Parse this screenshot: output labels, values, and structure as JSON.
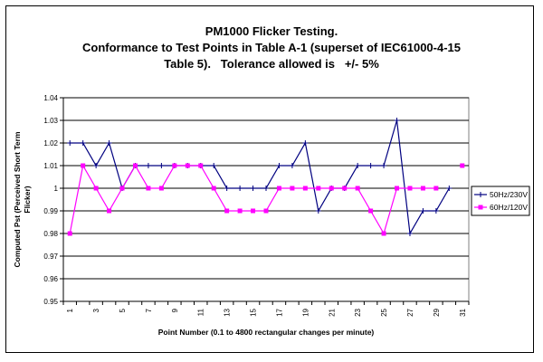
{
  "chart_data": {
    "type": "line",
    "title_lines": [
      "PM1000 Flicker Testing.",
      "Conformance to Test Points in Table A-1 (superset of IEC61000-4-15",
      "Table 5).   Tolerance allowed is   +/- 5%"
    ],
    "xlabel": "Point Number (0.1 to 4800 rectangular changes per minute)",
    "ylabel_lines": [
      "Computed Pst (Perceived Short Term",
      "Flicker)"
    ],
    "ylim": [
      0.95,
      1.04
    ],
    "yticks": [
      "0.95",
      "0.96",
      "0.97",
      "0.98",
      "0.99",
      "1",
      "1.01",
      "1.02",
      "1.03",
      "1.04"
    ],
    "categories": [
      "1",
      "2",
      "3",
      "4",
      "5",
      "6",
      "7",
      "8",
      "9",
      "10",
      "11",
      "12",
      "13",
      "14",
      "15",
      "16",
      "17",
      "18",
      "19",
      "20",
      "21",
      "22",
      "23",
      "24",
      "25",
      "26",
      "27",
      "28",
      "29",
      "30",
      "31"
    ],
    "grid": true,
    "legend_position": "right",
    "series": [
      {
        "name": "50Hz/230V",
        "color": "#000080",
        "marker": "plus",
        "values": [
          1.02,
          1.02,
          1.01,
          1.02,
          1.0,
          1.01,
          1.01,
          1.01,
          1.01,
          1.01,
          1.01,
          1.01,
          1.0,
          1.0,
          1.0,
          1.0,
          1.01,
          1.01,
          1.02,
          0.99,
          1.0,
          1.0,
          1.01,
          1.01,
          1.01,
          1.03,
          0.98,
          0.99,
          0.99,
          1.0,
          null
        ]
      },
      {
        "name": "60Hz/120V",
        "color": "#ff00ff",
        "marker": "square",
        "values": [
          0.98,
          1.01,
          1.0,
          0.99,
          1.0,
          1.01,
          1.0,
          1.0,
          1.01,
          1.01,
          1.01,
          1.0,
          0.99,
          0.99,
          0.99,
          0.99,
          1.0,
          1.0,
          1.0,
          1.0,
          1.0,
          1.0,
          1.0,
          0.99,
          0.98,
          1.0,
          1.0,
          1.0,
          1.0,
          null,
          1.01
        ]
      }
    ]
  }
}
